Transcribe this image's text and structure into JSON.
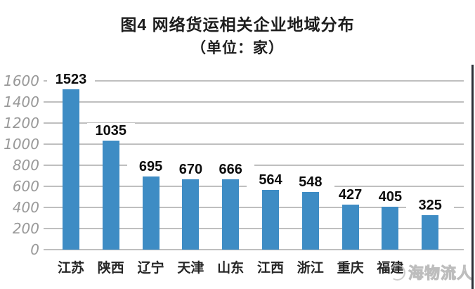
{
  "title": {
    "line1": "图4 网络货运相关企业地域分布",
    "line2": "（单位：家）"
  },
  "chart_data": {
    "type": "bar",
    "title": "图4 网络货运相关企业地域分布",
    "subtitle": "（单位：家）",
    "categories": [
      "江苏",
      "陕西",
      "辽宁",
      "天津",
      "山东",
      "江西",
      "浙江",
      "重庆",
      "福建",
      ""
    ],
    "values": [
      1523,
      1035,
      695,
      670,
      666,
      564,
      548,
      427,
      405,
      325
    ],
    "value_labels": [
      "1523",
      "1035",
      "695",
      "670",
      "666",
      "564",
      "548",
      "427",
      "405",
      "325"
    ],
    "ylabel": "",
    "xlabel": "",
    "ylim": [
      0,
      1600
    ],
    "yticks": [
      0,
      200,
      400,
      600,
      800,
      1000,
      1200,
      1400,
      1600
    ],
    "grid": true,
    "legend": "none",
    "bar_color": "#3e8cc4",
    "last_category_obscured_by_watermark": true
  },
  "watermark": {
    "text": "海物流人",
    "logo": "circular-swirl-logo"
  },
  "colors": {
    "bar": "#3e8cc4",
    "grid": "#bfbfbf",
    "ytick_text": "#999999",
    "category_text": "#262626",
    "value_text": "#0d0d0d",
    "title_text": "#1d1d1d",
    "watermark_text": "#bdbdbd",
    "edge_line": "#2a2f36"
  }
}
